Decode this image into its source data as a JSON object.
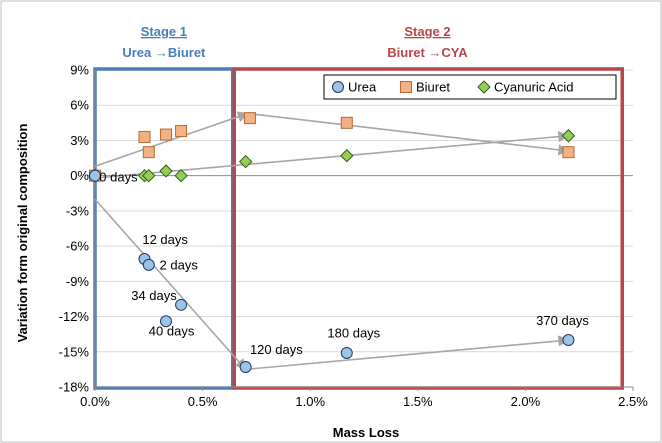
{
  "chart_data": {
    "type": "scatter",
    "xlabel": "Mass Loss",
    "ylabel": "Variation form original composition",
    "xlim": [
      0,
      0.025
    ],
    "ylim": [
      -0.18,
      0.09
    ],
    "x_ticks": [
      0,
      0.005,
      0.01,
      0.015,
      0.02,
      0.025
    ],
    "x_tick_labels": [
      "0.0%",
      "0.5%",
      "1.0%",
      "1.5%",
      "2.0%",
      "2.5%"
    ],
    "y_ticks": [
      0.09,
      0.06,
      0.03,
      0,
      -0.03,
      -0.06,
      -0.09,
      -0.12,
      -0.15,
      -0.18
    ],
    "y_tick_labels": [
      "9%",
      "6%",
      "3%",
      "0%",
      "-3%",
      "-6%",
      "-9%",
      "-12%",
      "-15%",
      "-18%"
    ],
    "grid": "horizontal",
    "legend_position": "top-right",
    "stages": [
      {
        "title": "Stage 1",
        "subtitle": "Urea →Biuret",
        "color": "#4a7ebb",
        "x_range": [
          0,
          0.0064
        ]
      },
      {
        "title": "Stage 2",
        "subtitle": "Biuret →CYA",
        "color": "#b7474a",
        "x_range": [
          0.0064,
          0.0245
        ]
      }
    ],
    "series": [
      {
        "name": "Urea",
        "marker": "circle",
        "fill": "#9dc3e6",
        "stroke": "#1f3864",
        "x": [
          0,
          0.0023,
          0.0025,
          0.004,
          0.0033,
          0.007,
          0.0117,
          0.022
        ],
        "y": [
          0,
          -0.071,
          -0.076,
          -0.11,
          -0.124,
          -0.163,
          -0.151,
          -0.14
        ]
      },
      {
        "name": "Biuret",
        "marker": "square",
        "fill": "#f4b183",
        "stroke": "#b46a2f",
        "x": [
          0,
          0.0023,
          0.0025,
          0.0033,
          0.004,
          0.0072,
          0.0117,
          0.022
        ],
        "y": [
          0,
          0.033,
          0.02,
          0.035,
          0.038,
          0.049,
          0.045,
          0.02
        ]
      },
      {
        "name": "Cyanuric Acid",
        "marker": "diamond",
        "fill": "#92d050",
        "stroke": "#375623",
        "x": [
          0,
          0.0023,
          0.0025,
          0.0033,
          0.004,
          0.007,
          0.0117,
          0.022
        ],
        "y": [
          0,
          0.0,
          0.0,
          0.004,
          0.0,
          0.012,
          0.017,
          0.034
        ]
      }
    ],
    "trend_arrows": [
      {
        "from": [
          0,
          0.008
        ],
        "to": [
          0.0071,
          0.053
        ]
      },
      {
        "from": [
          0.0071,
          0.053
        ],
        "to": [
          0.022,
          0.021
        ]
      },
      {
        "from": [
          0,
          -0.002
        ],
        "to": [
          0.022,
          0.034
        ]
      },
      {
        "from": [
          0,
          -0.02
        ],
        "to": [
          0.007,
          -0.165
        ]
      },
      {
        "from": [
          0.007,
          -0.165
        ],
        "to": [
          0.022,
          -0.14
        ]
      }
    ],
    "annotations": [
      {
        "text": "0 days",
        "x": 0.0002,
        "y": -0.005,
        "anchor": "start"
      },
      {
        "text": "12 days",
        "x": 0.0022,
        "y": -0.058,
        "anchor": "start"
      },
      {
        "text": "2 days",
        "x": 0.003,
        "y": -0.08,
        "anchor": "start"
      },
      {
        "text": "34 days",
        "x": 0.0038,
        "y": -0.106,
        "anchor": "end"
      },
      {
        "text": "40 days",
        "x": 0.0025,
        "y": -0.136,
        "anchor": "start"
      },
      {
        "text": "120 days",
        "x": 0.0072,
        "y": -0.152,
        "anchor": "start"
      },
      {
        "text": "180 days",
        "x": 0.0108,
        "y": -0.138,
        "anchor": "start"
      },
      {
        "text": "370 days",
        "x": 0.0205,
        "y": -0.127,
        "anchor": "start"
      }
    ]
  }
}
